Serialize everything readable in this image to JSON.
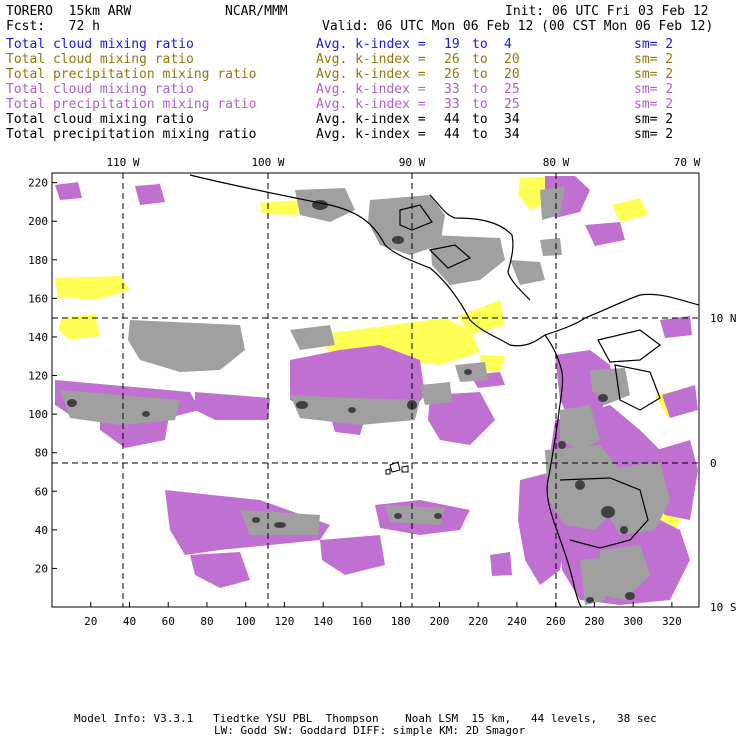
{
  "header": {
    "model": "TORERO  15km ARW",
    "org": "NCAR/MMM",
    "init": "Init: 06 UTC Fri 03 Feb 12",
    "fcst": "Fcst:   72 h",
    "valid": "Valid: 06 UTC Mon 06 Feb 12 (00 CST Mon 06 Feb 12)"
  },
  "legend": [
    {
      "field": "Total cloud mixing ratio",
      "kindex": "Avg. k-index =",
      "from": "19",
      "to_word": "to",
      "to": "4",
      "sm": "sm= 2",
      "color": "#1a1ad0",
      "cls": "c-blue"
    },
    {
      "field": "Total cloud mixing ratio",
      "kindex": "Avg. k-index =",
      "from": "26",
      "to_word": "to",
      "to": "20",
      "sm": "sm= 2",
      "color": "#8c7a10",
      "cls": "c-olive"
    },
    {
      "field": "Total precipitation mixing ratio",
      "kindex": "Avg. k-index =",
      "from": "26",
      "to_word": "to",
      "to": "20",
      "sm": "sm= 2",
      "color": "#8c7a10",
      "cls": "c-olive"
    },
    {
      "field": "Total cloud mixing ratio",
      "kindex": "Avg. k-index =",
      "from": "33",
      "to_word": "to",
      "to": "25",
      "sm": "sm= 2",
      "color": "#b060c8",
      "cls": "c-violet"
    },
    {
      "field": "Total precipitation mixing ratio",
      "kindex": "Avg. k-index =",
      "from": "33",
      "to_word": "to",
      "to": "25",
      "sm": "sm= 2",
      "color": "#b060c8",
      "cls": "c-violet"
    },
    {
      "field": "Total cloud mixing ratio",
      "kindex": "Avg. k-index =",
      "from": "44",
      "to_word": "to",
      "to": "34",
      "sm": "sm= 2",
      "color": "#000000",
      "cls": "c-black"
    },
    {
      "field": "Total precipitation mixing ratio",
      "kindex": "Avg. k-index =",
      "from": "44",
      "to_word": "to",
      "to": "34",
      "sm": "sm= 2",
      "color": "#000000",
      "cls": "c-black"
    }
  ],
  "map": {
    "x_range": [
      0,
      334
    ],
    "y_range": [
      0,
      225
    ],
    "x_ticks": [
      "20",
      "40",
      "60",
      "80",
      "100",
      "120",
      "140",
      "160",
      "180",
      "200",
      "220",
      "240",
      "260",
      "280",
      "300",
      "320"
    ],
    "y_ticks": [
      "20",
      "40",
      "60",
      "80",
      "100",
      "120",
      "140",
      "160",
      "180",
      "200",
      "220"
    ],
    "lon_labels": [
      "110 W",
      "100 W",
      "90 W",
      "80 W",
      "70 W"
    ],
    "lat_labels": [
      "10 N",
      "0",
      "10 S"
    ],
    "colors": {
      "yellow": "#ffff55",
      "violet": "#c070d0",
      "gray": "#a0a0a0",
      "dark": "#404040"
    }
  },
  "footer": {
    "line1": "Model Info: V3.3.1   Tiedtke YSU PBL  Thompson    Noah LSM  15 km,   44 levels,   38 sec",
    "line2": "LW: Godd SW: Goddard DIFF: simple KM: 2D Smagor"
  }
}
